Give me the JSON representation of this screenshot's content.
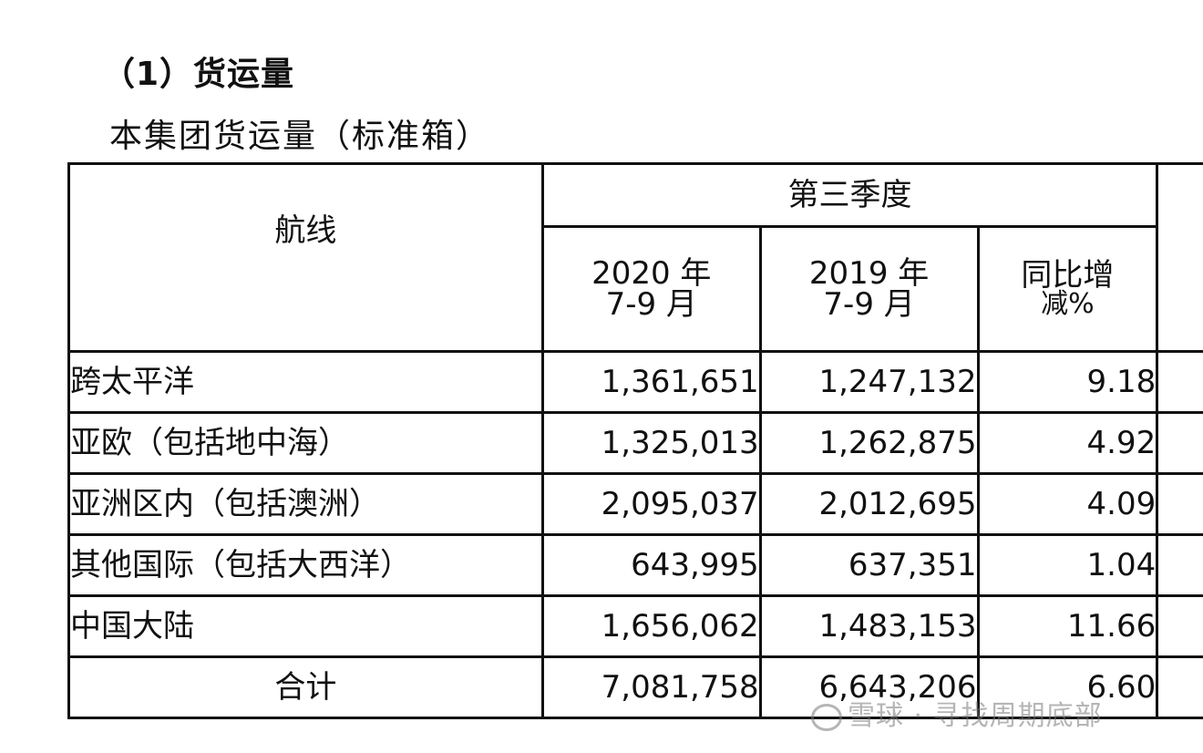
{
  "section_title": "（1）货运量",
  "table_caption": "本集团货运量（标准箱）",
  "header": {
    "route": "航线",
    "quarter": "第三季度",
    "col_2020_line1": "2020 年",
    "col_2020_line2": "7-9 月",
    "col_2019_line1": "2019 年",
    "col_2019_line2": "7-9 月",
    "col_change_line1": "同比增",
    "col_change_line2": "减%"
  },
  "rows": [
    {
      "route": "跨太平洋",
      "y2020": "1,361,651",
      "y2019": "1,247,132",
      "change": "9.18"
    },
    {
      "route": "亚欧（包括地中海）",
      "y2020": "1,325,013",
      "y2019": "1,262,875",
      "change": "4.92"
    },
    {
      "route": "亚洲区内（包括澳洲）",
      "y2020": "2,095,037",
      "y2019": "2,012,695",
      "change": "4.09"
    },
    {
      "route": "其他国际（包括大西洋）",
      "y2020": "643,995",
      "y2019": "637,351",
      "change": "1.04"
    },
    {
      "route": "中国大陆",
      "y2020": "1,656,062",
      "y2019": "1,483,153",
      "change": "11.66"
    }
  ],
  "total": {
    "route": "合计",
    "y2020": "7,081,758",
    "y2019": "6,643,206",
    "change": "6.60"
  },
  "watermark": "雪球 · 寻找周期底部"
}
